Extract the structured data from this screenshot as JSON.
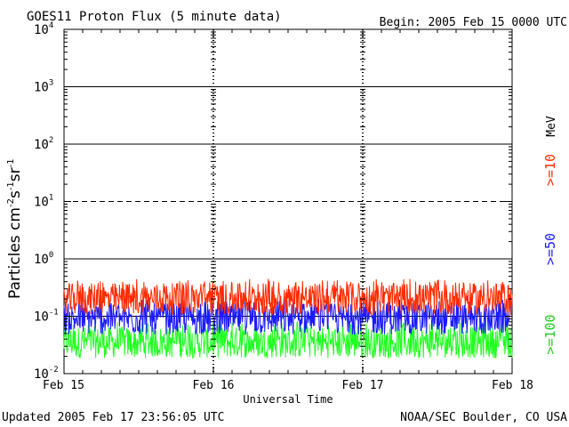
{
  "header": {
    "title": "GOES11 Proton Flux (5 minute data)",
    "begin": "Begin: 2005 Feb 15 0000 UTC"
  },
  "footer": {
    "updated": "Updated 2005 Feb 17 23:56:05 UTC",
    "source": "NOAA/SEC Boulder, CO USA"
  },
  "chart_data": {
    "type": "line",
    "title": "GOES11 Proton Flux (5 minute data)",
    "xlabel": "Universal Time",
    "ylabel": "Particles cm-2s-1sr-1",
    "y_scale": "log",
    "ylim": [
      0.01,
      10000
    ],
    "x_ticks": [
      "Feb 15",
      "Feb 16",
      "Feb 17",
      "Feb 18"
    ],
    "y_ticks": [
      {
        "base": "10",
        "exp": "-2"
      },
      {
        "base": "10",
        "exp": "-1"
      },
      {
        "base": "10",
        "exp": "0"
      },
      {
        "base": "10",
        "exp": "1"
      },
      {
        "base": "10",
        "exp": "2"
      },
      {
        "base": "10",
        "exp": "3"
      },
      {
        "base": "10",
        "exp": "4"
      }
    ],
    "threshold_lines": [
      {
        "value": 0.1,
        "style": "solid"
      },
      {
        "value": 1,
        "style": "solid"
      },
      {
        "value": 10,
        "style": "dashed"
      },
      {
        "value": 100,
        "style": "solid"
      },
      {
        "value": 1000,
        "style": "solid"
      }
    ],
    "right_unit": "MeV",
    "series": [
      {
        "name": ">=10",
        "color": "#ff2a00",
        "typical": 0.2,
        "max": 0.45
      },
      {
        "name": ">=50",
        "color": "#1a1aff",
        "typical": 0.09,
        "max": 0.2
      },
      {
        "name": ">=100",
        "color": "#22ff22",
        "typical": 0.035,
        "max": 0.08
      }
    ]
  }
}
